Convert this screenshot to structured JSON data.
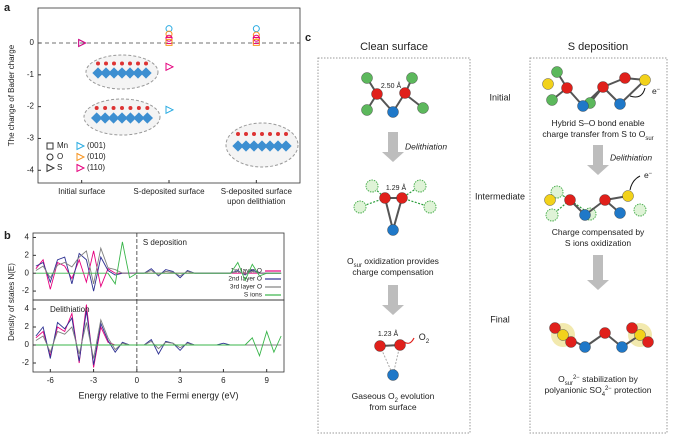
{
  "chart_data": [
    {
      "type": "scatter",
      "panel": "a",
      "ylabel": "The change of Bader charge",
      "categories": [
        "Initial surface",
        "S-deposited surface",
        "S-deposited surface upon delithiation"
      ],
      "ylim": [
        -4.4,
        1.1
      ],
      "yticks": [
        0,
        -1,
        -2,
        -3,
        -4
      ],
      "legend": {
        "markers": [
          {
            "label": "Mn",
            "shape": "square"
          },
          {
            "label": "O",
            "shape": "circle"
          },
          {
            "label": "S",
            "shape": "triangle"
          }
        ],
        "facets": [
          {
            "label": "(001)",
            "color": "#29abe2"
          },
          {
            "label": "(010)",
            "color": "#f7931e"
          },
          {
            "label": "(110)",
            "color": "#e6007e"
          }
        ]
      },
      "series": [
        {
          "shape": "triangle",
          "color": "#29abe2",
          "values": [
            0,
            -2.1,
            null
          ]
        },
        {
          "shape": "triangle",
          "color": "#e6007e",
          "values": [
            0,
            -0.75,
            null
          ]
        },
        {
          "shape": "circle",
          "color": "#29abe2",
          "values": [
            null,
            0.45,
            0.45
          ]
        },
        {
          "shape": "circle",
          "color": "#f7931e",
          "values": [
            null,
            0.28,
            0.25
          ]
        },
        {
          "shape": "circle",
          "color": "#e6007e",
          "values": [
            null,
            0.15,
            0.15
          ]
        },
        {
          "shape": "square",
          "color": "#e6007e",
          "values": [
            null,
            0.08,
            0.08
          ]
        },
        {
          "shape": "square",
          "color": "#f7931e",
          "values": [
            null,
            0.02,
            0.02
          ]
        }
      ]
    },
    {
      "type": "line",
      "panel": "b",
      "annotation": "S deposition",
      "ylabel": "Density of states N(E)",
      "xlim": [
        -7.2,
        10.2
      ],
      "ylim": [
        -3,
        4.5
      ],
      "yticks": [
        -2,
        0,
        2,
        4
      ],
      "x": [
        -7,
        -6.5,
        -6,
        -5.5,
        -5,
        -4.5,
        -4,
        -3.5,
        -3,
        -2.5,
        -2,
        -1.5,
        -1,
        -0.5,
        0,
        0.5,
        1,
        1.5,
        2,
        2.5,
        3,
        3.5,
        4,
        4.5,
        5,
        5.5,
        6,
        6.5,
        7,
        7.5,
        8,
        8.5,
        9,
        9.5,
        10
      ],
      "series": [
        {
          "name": "1st layer O",
          "color": "#e6007e",
          "values": [
            0.5,
            1.5,
            -1.8,
            1.2,
            0.8,
            -0.6,
            1.5,
            -1,
            2.5,
            -1.5,
            0.5,
            0,
            0,
            0,
            0,
            0,
            0,
            0,
            0,
            0,
            0,
            0,
            0,
            0,
            0,
            0,
            0,
            0,
            0,
            0,
            0,
            0,
            0,
            0,
            0
          ]
        },
        {
          "name": "2nd layer O",
          "color": "#2e3192",
          "values": [
            0.8,
            1.2,
            -1,
            1.5,
            1.8,
            -1.2,
            2.2,
            1.5,
            -2,
            1.8,
            0.3,
            -0.2,
            0,
            0,
            0,
            0,
            0.5,
            -0.3,
            0.4,
            0.2,
            -0.5,
            0.3,
            0,
            0,
            0,
            0,
            0,
            0,
            0.3,
            -0.2,
            0.4,
            0,
            0,
            0,
            0
          ]
        },
        {
          "name": "3rd layer O",
          "color": "#808080",
          "values": [
            0.3,
            0.8,
            -0.5,
            0.9,
            1.2,
            0.7,
            1.8,
            2.5,
            -1.2,
            2.8,
            0.6,
            0.4,
            0,
            0,
            0,
            0,
            0.3,
            -0.2,
            0.2,
            0.1,
            -0.3,
            0.2,
            0,
            0,
            0,
            0,
            0,
            0,
            0.2,
            -0.1,
            0.2,
            0,
            0,
            0,
            0
          ]
        },
        {
          "name": "S ions",
          "color": "#39b54a",
          "values": [
            0,
            0,
            0,
            0,
            0,
            0,
            0,
            0,
            0,
            0,
            0,
            -1.2,
            3.5,
            -0.5,
            0,
            0,
            0,
            0,
            0,
            0,
            0,
            0,
            0,
            0,
            0,
            0,
            0,
            0,
            1.2,
            -0.8,
            1,
            -0.3,
            0,
            0,
            0
          ]
        }
      ]
    },
    {
      "type": "line",
      "annotation": "Delithiation",
      "xlabel": "Energy relative to the Fermi energy (eV)",
      "xlim": [
        -7.2,
        10.2
      ],
      "ylim": [
        -3,
        5
      ],
      "yticks": [
        -2,
        0,
        2,
        4
      ],
      "xticks": [
        -6,
        -3,
        0,
        3,
        6,
        9
      ],
      "x": [
        -7,
        -6.5,
        -6,
        -5.5,
        -5,
        -4.5,
        -4,
        -3.5,
        -3,
        -2.5,
        -2,
        -1.5,
        -1,
        -0.5,
        0,
        0.5,
        1,
        1.5,
        2,
        2.5,
        3,
        3.5,
        4,
        4.5,
        5,
        5.5,
        6,
        6.5,
        7,
        7.5,
        8,
        8.5,
        9,
        9.5,
        10
      ],
      "series": [
        {
          "color": "#e6007e",
          "values": [
            0.8,
            1.5,
            -1.2,
            2,
            1.5,
            3.5,
            -2,
            4.5,
            -2.5,
            2,
            0.3,
            0,
            0,
            0,
            0,
            0,
            0,
            0,
            0,
            0,
            0,
            0,
            0,
            0,
            0,
            0,
            0,
            0,
            0,
            0,
            0,
            0,
            0,
            0,
            0
          ]
        },
        {
          "color": "#2e3192",
          "values": [
            1,
            2,
            -1.5,
            2.5,
            1.8,
            3,
            -1.8,
            3.8,
            -2.2,
            2.4,
            0.5,
            -0.8,
            0.3,
            0,
            0,
            0,
            0.6,
            -1,
            0.4,
            0.2,
            -0.6,
            0.3,
            0,
            0,
            0,
            0,
            0.2,
            0,
            0,
            0,
            0,
            0,
            0,
            0,
            0
          ]
        },
        {
          "color": "#808080",
          "values": [
            0.5,
            1,
            -0.8,
            1.5,
            1.2,
            2,
            -1,
            2.5,
            -1.5,
            2.8,
            0.8,
            -0.5,
            0.2,
            0,
            0,
            0,
            0.4,
            -0.4,
            0.3,
            0.2,
            -0.3,
            0.2,
            0,
            0,
            0,
            0,
            0,
            0,
            0,
            0,
            0,
            0,
            0,
            0,
            0
          ]
        },
        {
          "color": "#39b54a",
          "values": [
            0,
            0,
            0,
            0,
            0,
            0,
            0,
            0,
            0,
            0,
            0,
            0,
            0,
            0,
            0,
            0,
            0,
            0,
            0,
            0,
            0,
            0,
            0,
            0,
            0,
            0,
            0,
            0,
            0,
            0,
            0.8,
            -1.2,
            1.5,
            -0.8,
            1
          ]
        }
      ]
    }
  ],
  "diagram": {
    "label": "c",
    "rows": [
      "Initial",
      "Intermediate",
      "Final"
    ],
    "clean": {
      "title": "Clean surface",
      "bond1": "2.50 Å",
      "arrow": "Delithiation",
      "bond2": "1.29 Å",
      "caption1": [
        [
          "O",
          {
            "sub": "sur"
          },
          " oxidization provides"
        ],
        [
          "charge compensation"
        ]
      ],
      "bond3": "1.23 Å",
      "gas": [
        "O",
        {
          "sub": "2"
        }
      ],
      "caption2": [
        [
          "Gaseous O",
          {
            "sub": "2"
          },
          " evolution"
        ],
        [
          "from surface"
        ]
      ]
    },
    "sdep": {
      "title": "S deposition",
      "electron1": [
        "e",
        {
          "sup": "−"
        }
      ],
      "caption1": [
        [
          "Hybrid S–O bond enable"
        ],
        [
          "charge transfer from S to O",
          {
            "sub": "sur"
          }
        ]
      ],
      "arrow": "Delithiation",
      "electron2": [
        "e",
        {
          "sup": "−"
        }
      ],
      "caption2": [
        [
          "Charge compensated by"
        ],
        [
          "S ions oxidization"
        ]
      ],
      "caption3": [
        [
          "O",
          {
            "sub": "sur"
          },
          {
            "sup": "2−"
          },
          " stabilization by"
        ],
        [
          "polyanionic SO",
          {
            "sub": "4"
          },
          {
            "sup": "2−"
          },
          " protection"
        ]
      ]
    }
  }
}
